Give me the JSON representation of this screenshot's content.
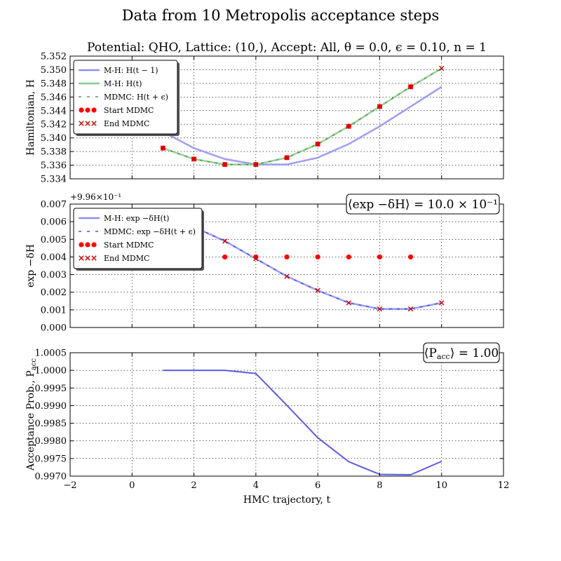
{
  "figure": {
    "suptitle": "Data from 10 Metropolis acceptance steps",
    "colors": {
      "mh": "#7b7bf0",
      "mh_t": "#7fbf7f",
      "mdmc": "#2e8b2e",
      "start": "#ff0000",
      "end": "#cc0000",
      "pacc": "#5a5ae6"
    }
  },
  "chart_data": [
    {
      "type": "line",
      "title": "Potential: QHO, Lattice: (10,), Accept: All, θ = 0.0, ϵ = 0.10, n = 1",
      "xlabel": "",
      "ylabel": "Hamiltonian, H",
      "xlim": [
        -2,
        12
      ],
      "ylim": [
        5.334,
        5.352
      ],
      "x_ticks": [
        -2,
        0,
        2,
        4,
        6,
        8,
        10,
        12
      ],
      "y_ticks": [
        5.334,
        5.336,
        5.338,
        5.34,
        5.342,
        5.344,
        5.346,
        5.348,
        5.35,
        5.352
      ],
      "y_tick_labels": [
        "5.334",
        "5.336",
        "5.338",
        "5.340",
        "5.342",
        "5.344",
        "5.346",
        "5.348",
        "5.350",
        "5.352"
      ],
      "grid": true,
      "legend_position": "top-left",
      "series": [
        {
          "name": "M-H: H(t − 1)",
          "style": "line",
          "color": "#8f8ff2",
          "x": [
            1,
            2,
            3,
            4,
            5,
            6,
            7,
            8,
            9,
            10
          ],
          "y": [
            5.3409,
            5.3385,
            5.3369,
            5.3361,
            5.3361,
            5.3371,
            5.3391,
            5.3417,
            5.3446,
            5.3475
          ]
        },
        {
          "name": "M-H: H(t)",
          "style": "line",
          "color": "#8cc98c",
          "x": [
            1,
            2,
            3,
            4,
            5,
            6,
            7,
            8,
            9,
            10
          ],
          "y": [
            5.3385,
            5.3369,
            5.3361,
            5.3361,
            5.3371,
            5.3391,
            5.3417,
            5.3446,
            5.3475,
            5.3502
          ]
        },
        {
          "name": "MDMC: H(t + ϵ)",
          "style": "dash",
          "color": "#2e8b2e",
          "x": [
            1,
            2,
            3,
            4,
            5,
            6,
            7,
            8,
            9,
            10
          ],
          "y": [
            5.3385,
            5.3369,
            5.3361,
            5.3361,
            5.3371,
            5.3391,
            5.3417,
            5.3446,
            5.3475,
            5.3502
          ]
        },
        {
          "name": "Start MDMC",
          "style": "dots",
          "color": "#ff0000",
          "x": [
            0,
            1,
            2,
            3,
            4,
            5,
            6,
            7,
            8,
            9
          ],
          "y": [
            5.3409,
            5.3385,
            5.3369,
            5.3361,
            5.3361,
            5.3371,
            5.3391,
            5.3417,
            5.3446,
            5.3475
          ]
        },
        {
          "name": "End MDMC",
          "style": "crosses",
          "color": "#cc0000",
          "x": [
            1,
            2,
            3,
            4,
            5,
            6,
            7,
            8,
            9,
            10
          ],
          "y": [
            5.3385,
            5.3369,
            5.3361,
            5.3361,
            5.3371,
            5.3391,
            5.3417,
            5.3446,
            5.3475,
            5.3502
          ]
        }
      ],
      "legend_labels": [
        "M-H: H(t − 1)",
        "M-H: H(t)",
        "MDMC: H(t + ϵ)",
        "Start MDMC",
        "End MDMC"
      ]
    },
    {
      "type": "line",
      "title": "",
      "xlabel": "",
      "ylabel": "exp −δH",
      "offset_label": "+9.96×10⁻¹",
      "annotation": "⟨exp −δH⟩ = 10.0 × 10⁻¹",
      "xlim": [
        -2,
        12
      ],
      "ylim": [
        0.0,
        0.007
      ],
      "x_ticks": [
        -2,
        0,
        2,
        4,
        6,
        8,
        10,
        12
      ],
      "y_ticks": [
        0.0,
        0.001,
        0.002,
        0.003,
        0.004,
        0.005,
        0.006,
        0.007
      ],
      "y_tick_labels": [
        "0.000",
        "0.001",
        "0.002",
        "0.003",
        "0.004",
        "0.005",
        "0.006",
        "0.007"
      ],
      "grid": true,
      "legend_position": "top-left",
      "series": [
        {
          "name": "M-H: exp −δH(t)",
          "style": "line",
          "color": "#8f8ff2",
          "x": [
            1,
            2,
            3,
            4,
            5,
            6,
            7,
            8,
            9,
            10
          ],
          "y": [
            0.0064,
            0.0057,
            0.0049,
            0.0039,
            0.0029,
            0.0021,
            0.0014,
            0.00105,
            0.00105,
            0.0014
          ]
        },
        {
          "name": "MDMC: exp −δH(t + ϵ)",
          "style": "dash",
          "color": "#2233cc",
          "x": [
            1,
            2,
            3,
            4,
            5,
            6,
            7,
            8,
            9,
            10
          ],
          "y": [
            0.0064,
            0.0057,
            0.0049,
            0.0039,
            0.0029,
            0.0021,
            0.0014,
            0.00105,
            0.00105,
            0.0014
          ]
        },
        {
          "name": "Start MDMC",
          "style": "dots",
          "color": "#ff0000",
          "x": [
            0,
            1,
            2,
            3,
            4,
            5,
            6,
            7,
            8,
            9
          ],
          "y": [
            0.004,
            0.004,
            0.004,
            0.004,
            0.004,
            0.004,
            0.004,
            0.004,
            0.004,
            0.004
          ]
        },
        {
          "name": "End MDMC",
          "style": "crosses",
          "color": "#cc0000",
          "x": [
            1,
            2,
            3,
            4,
            5,
            6,
            7,
            8,
            9,
            10
          ],
          "y": [
            0.0064,
            0.0057,
            0.0049,
            0.0039,
            0.0029,
            0.0021,
            0.0014,
            0.00105,
            0.00105,
            0.0014
          ]
        }
      ],
      "legend_labels": [
        "M-H: exp −δH(t)",
        "MDMC: exp −δH(t + ϵ)",
        "Start MDMC",
        "End MDMC"
      ]
    },
    {
      "type": "line",
      "title": "",
      "xlabel": "HMC trajectory, t",
      "ylabel": "Acceptance Prob., P",
      "ylabel_sub": "acc",
      "annotation": "⟨P",
      "annotation_sub": "acc",
      "annotation_rest": "⟩ = 1.00",
      "xlim": [
        -2,
        12
      ],
      "ylim": [
        0.997,
        1.0005
      ],
      "x_ticks": [
        -2,
        0,
        2,
        4,
        6,
        8,
        10,
        12
      ],
      "x_tick_labels": [
        "−2",
        "0",
        "2",
        "4",
        "6",
        "8",
        "10",
        "12"
      ],
      "y_ticks": [
        0.997,
        0.9975,
        0.998,
        0.9985,
        0.999,
        0.9995,
        1.0,
        1.0005
      ],
      "y_tick_labels": [
        "0.9970",
        "0.9975",
        "0.9980",
        "0.9985",
        "0.9990",
        "0.9995",
        "1.0000",
        "1.0005"
      ],
      "grid": true,
      "series": [
        {
          "name": "",
          "style": "line",
          "color": "#5a5ae6",
          "x": [
            1,
            2,
            3,
            4,
            5,
            6,
            7,
            8,
            9,
            10
          ],
          "y": [
            1.0,
            1.0,
            1.0,
            0.99991,
            0.99901,
            0.99809,
            0.99741,
            0.99705,
            0.99704,
            0.99742
          ]
        }
      ]
    }
  ]
}
